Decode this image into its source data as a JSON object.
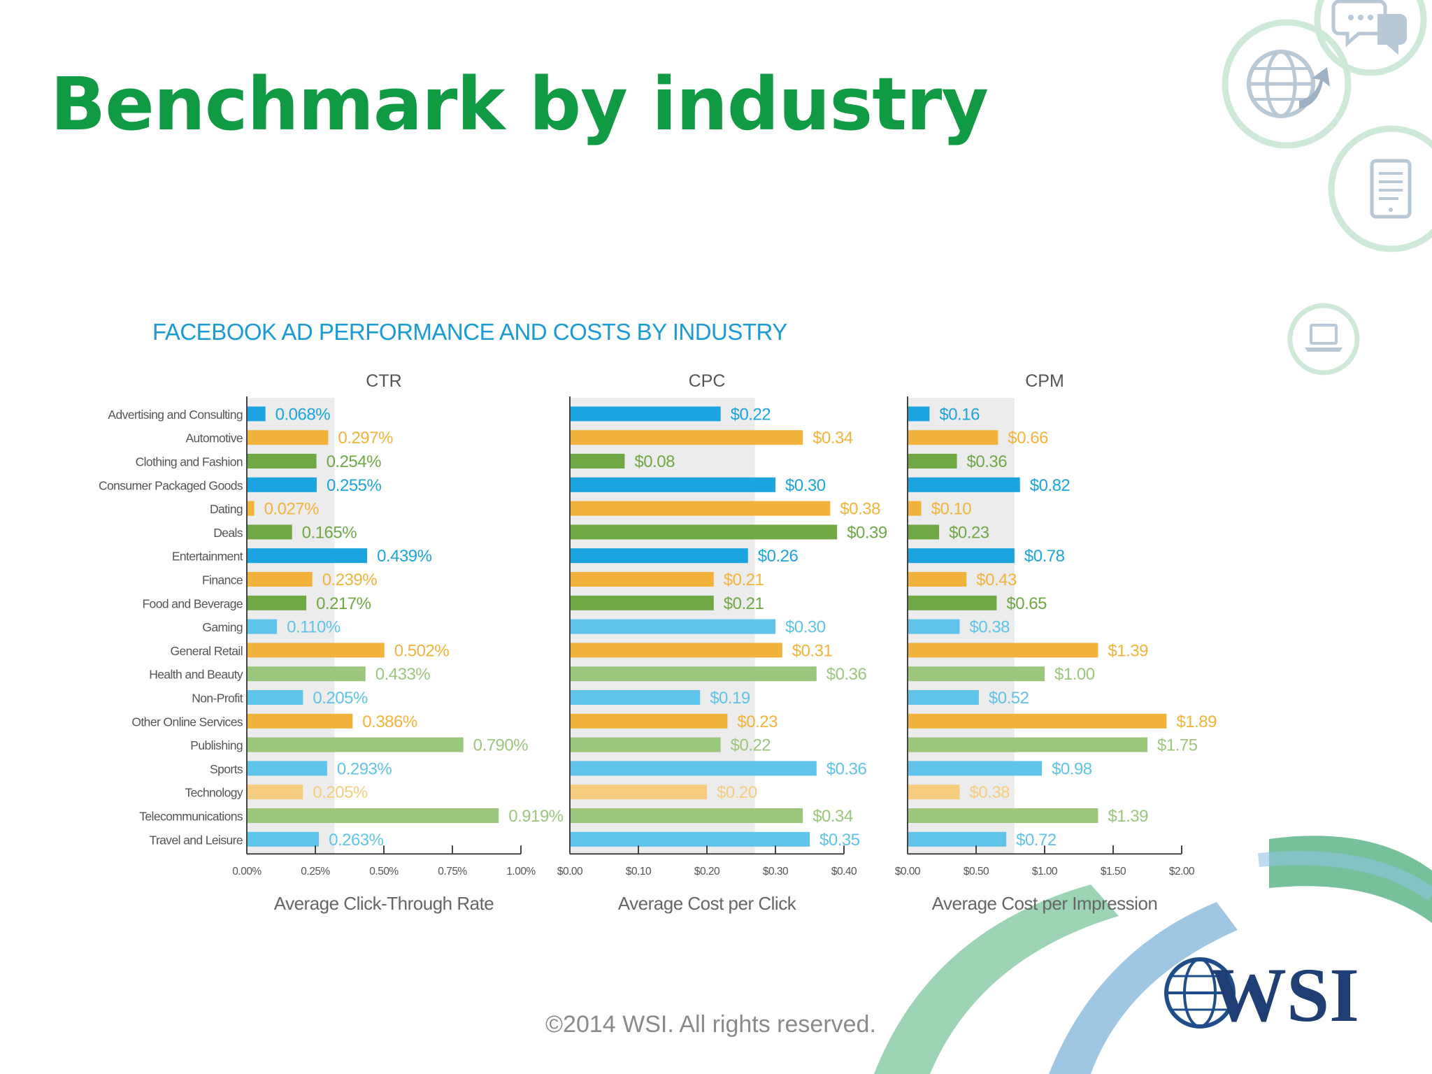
{
  "slide": {
    "title": "Benchmark by industry",
    "footer": "©2014 WSI. All rights reserved.",
    "logo_text": "WSI"
  },
  "icons": [
    "chat-bubbles-icon",
    "globe-refresh-icon",
    "document-tablet-icon",
    "laptop-icon",
    "wsi-globe-logo"
  ],
  "colors": {
    "title_green": "#0f9a43",
    "chart_title_blue": "#1b9bd6",
    "blue": "#1ba4e0",
    "orange": "#f2b33d",
    "green": "#6fa844",
    "light_blue": "#5fc3ea",
    "light_orange": "#f6cd7e",
    "light_green": "#9cc67c",
    "band": "#ececec"
  },
  "chart_data": {
    "type": "bar",
    "orientation": "horizontal",
    "title": "FACEBOOK AD PERFORMANCE AND COSTS BY INDUSTRY",
    "categories": [
      "Advertising and Consulting",
      "Automotive",
      "Clothing and Fashion",
      "Consumer Packaged Goods",
      "Dating",
      "Deals",
      "Entertainment",
      "Finance",
      "Food and Beverage",
      "Gaming",
      "General Retail",
      "Health and Beauty",
      "Non-Profit",
      "Other Online Services",
      "Publishing",
      "Sports",
      "Technology",
      "Telecommunications",
      "Travel and Leisure"
    ],
    "panels": [
      {
        "name": "CTR",
        "xlabel": "Average Click-Through Rate",
        "xlim": [
          0,
          1.0
        ],
        "ticks": [
          0,
          0.25,
          0.5,
          0.75,
          1.0
        ],
        "tick_labels": [
          "0.00%",
          "0.25%",
          "0.50%",
          "0.75%",
          "1.00%"
        ],
        "average_band": [
          0,
          0.32
        ],
        "values": [
          0.068,
          0.297,
          0.254,
          0.255,
          0.027,
          0.165,
          0.439,
          0.239,
          0.217,
          0.11,
          0.502,
          0.433,
          0.205,
          0.386,
          0.79,
          0.293,
          0.205,
          0.919,
          0.263
        ],
        "labels": [
          "0.068%",
          "0.297%",
          "0.254%",
          "0.255%",
          "0.027%",
          "0.165%",
          "0.439%",
          "0.239%",
          "0.217%",
          "0.110%",
          "0.502%",
          "0.433%",
          "0.205%",
          "0.386%",
          "0.790%",
          "0.293%",
          "0.205%",
          "0.919%",
          "0.263%"
        ]
      },
      {
        "name": "CPC",
        "xlabel": "Average Cost per Click",
        "xlim": [
          0,
          0.4
        ],
        "ticks": [
          0,
          0.1,
          0.2,
          0.3,
          0.4
        ],
        "tick_labels": [
          "$0.00",
          "$0.10",
          "$0.20",
          "$0.30",
          "$0.40"
        ],
        "average_band": [
          0,
          0.27
        ],
        "values": [
          0.22,
          0.34,
          0.08,
          0.3,
          0.38,
          0.39,
          0.26,
          0.21,
          0.21,
          0.3,
          0.31,
          0.36,
          0.19,
          0.23,
          0.22,
          0.36,
          0.2,
          0.34,
          0.35
        ],
        "labels": [
          "$0.22",
          "$0.34",
          "$0.08",
          "$0.30",
          "$0.38",
          "$0.39",
          "$0.26",
          "$0.21",
          "$0.21",
          "$0.30",
          "$0.31",
          "$0.36",
          "$0.19",
          "$0.23",
          "$0.22",
          "$0.36",
          "$0.20",
          "$0.34",
          "$0.35"
        ]
      },
      {
        "name": "CPM",
        "xlabel": "Average Cost per Impression",
        "xlim": [
          0,
          2.0
        ],
        "ticks": [
          0,
          0.5,
          1.0,
          1.5,
          2.0
        ],
        "tick_labels": [
          "$0.00",
          "$0.50",
          "$1.00",
          "$1.50",
          "$2.00"
        ],
        "average_band": [
          0,
          0.78
        ],
        "values": [
          0.16,
          0.66,
          0.36,
          0.82,
          0.1,
          0.23,
          0.78,
          0.43,
          0.65,
          0.38,
          1.39,
          1.0,
          0.52,
          1.89,
          1.75,
          0.98,
          0.38,
          1.39,
          0.72
        ],
        "labels": [
          "$0.16",
          "$0.66",
          "$0.36",
          "$0.82",
          "$0.10",
          "$0.23",
          "$0.78",
          "$0.43",
          "$0.65",
          "$0.38",
          "$1.39",
          "$1.00",
          "$0.52",
          "$1.89",
          "$1.75",
          "$0.98",
          "$0.38",
          "$1.39",
          "$0.72"
        ]
      }
    ],
    "grid": false,
    "legend": "none"
  }
}
